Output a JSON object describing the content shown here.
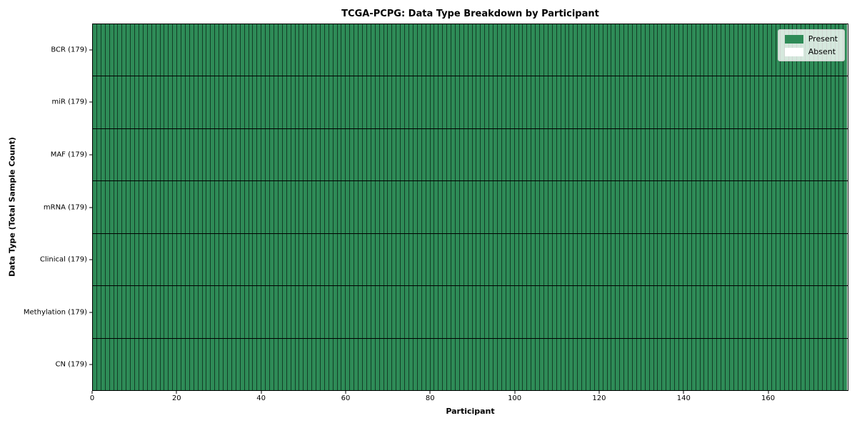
{
  "chart_data": {
    "type": "heatmap",
    "title": "TCGA-PCPG: Data Type Breakdown by Participant",
    "xlabel": "Participant",
    "ylabel": "Data Type (Total Sample Count)",
    "x_ticks": [
      0,
      20,
      40,
      60,
      80,
      100,
      120,
      140,
      160
    ],
    "x_range": [
      0,
      179
    ],
    "n_participants": 179,
    "grid": "cell-edges-on",
    "rows": [
      {
        "label": "BCR (179)",
        "present_count": 179,
        "absent_count": 0
      },
      {
        "label": "miR (179)",
        "present_count": 179,
        "absent_count": 0
      },
      {
        "label": "MAF (179)",
        "present_count": 179,
        "absent_count": 0
      },
      {
        "label": "mRNA (179)",
        "present_count": 179,
        "absent_count": 0
      },
      {
        "label": "Clinical (179)",
        "present_count": 179,
        "absent_count": 0
      },
      {
        "label": "Methylation (179)",
        "present_count": 179,
        "absent_count": 0
      },
      {
        "label": "CN (179)",
        "present_count": 179,
        "absent_count": 0
      }
    ],
    "legend": {
      "position": "upper-right",
      "entries": [
        {
          "label": "Present",
          "color": "#2e8b57"
        },
        {
          "label": "Absent",
          "color": "#ffffff"
        }
      ]
    },
    "colors": {
      "present": "#2e8b57",
      "absent": "#ffffff",
      "cell_edge": "rgba(0,0,0,0.55)",
      "row_divider": "#000000",
      "axis": "#000000"
    }
  }
}
